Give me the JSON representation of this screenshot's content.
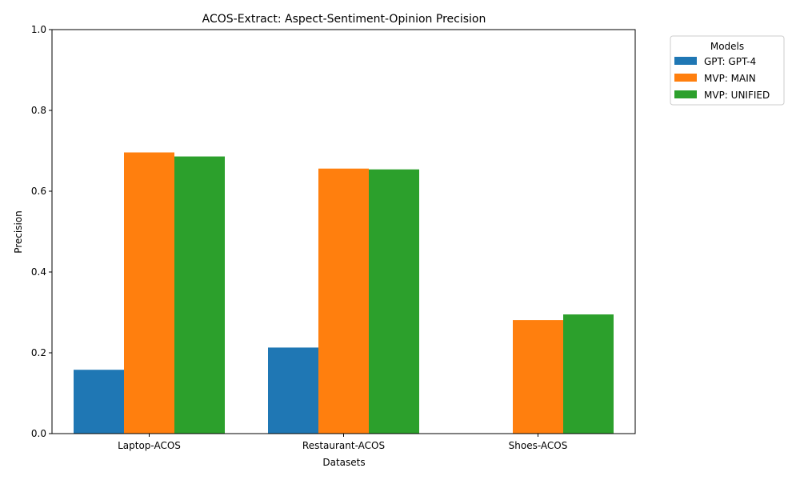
{
  "chart_data": {
    "type": "bar",
    "title": "ACOS-Extract: Aspect-Sentiment-Opinion Precision",
    "xlabel": "Datasets",
    "ylabel": "Precision",
    "ylim": [
      0,
      1.0
    ],
    "yticks": [
      0.0,
      0.2,
      0.4,
      0.6,
      0.8,
      1.0
    ],
    "ytick_labels": [
      "0.0",
      "0.2",
      "0.4",
      "0.6",
      "0.8",
      "1.0"
    ],
    "categories": [
      "Laptop-ACOS",
      "Restaurant-ACOS",
      "Shoes-ACOS"
    ],
    "series": [
      {
        "name": "GPT: GPT-4",
        "color": "#1f77b4",
        "values": [
          0.158,
          0.213,
          null
        ]
      },
      {
        "name": "MVP: MAIN",
        "color": "#ff7f0e",
        "values": [
          0.696,
          0.656,
          0.281
        ]
      },
      {
        "name": "MVP: UNIFIED",
        "color": "#2ca02c",
        "values": [
          0.686,
          0.654,
          0.295
        ]
      }
    ],
    "legend": {
      "title": "Models",
      "placement": "outside-upper-right"
    },
    "grid": false
  }
}
